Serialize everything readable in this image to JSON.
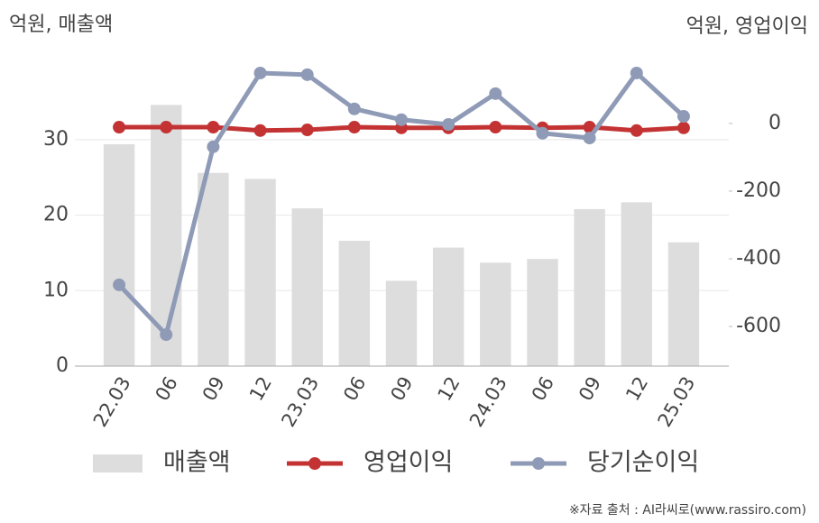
{
  "chart_data": {
    "type": "combo",
    "y_label": "억원, 매출액",
    "y2_label": "억원, 영업이익",
    "source": "※자료 출처 : AI라씨로(www.rassiro.com)",
    "categories": [
      "22.03",
      "06",
      "09",
      "12",
      "23.03",
      "06",
      "09",
      "12",
      "24.03",
      "06",
      "09",
      "12",
      "25.03"
    ],
    "series": [
      {
        "name": "매출액",
        "type": "bar",
        "color": "#dddddd",
        "values": [
          29.4,
          34.6,
          25.6,
          24.8,
          20.9,
          16.6,
          11.3,
          15.7,
          13.7,
          14.2,
          20.8,
          21.7,
          16.4
        ]
      },
      {
        "name": "영업이익",
        "type": "line",
        "axis": "y2",
        "color": "#c43333",
        "values": [
          -11,
          -11,
          -11,
          -21,
          -19,
          -11,
          -13,
          -13,
          -11,
          -13,
          -11,
          -21,
          -13
        ]
      },
      {
        "name": "당기순이익",
        "type": "line",
        "axis": "y2",
        "color": "#8f9bb6",
        "values": [
          -477,
          -624,
          -69,
          149,
          144,
          43,
          11,
          -3,
          88,
          -29,
          -43,
          149,
          21
        ]
      }
    ],
    "ylim": [
      0,
      40
    ],
    "yticks": [
      0,
      10,
      20,
      30
    ],
    "y2lim": [
      -717,
      175
    ],
    "y2ticks": [
      0,
      -200,
      -400,
      -600
    ],
    "grid": true
  }
}
